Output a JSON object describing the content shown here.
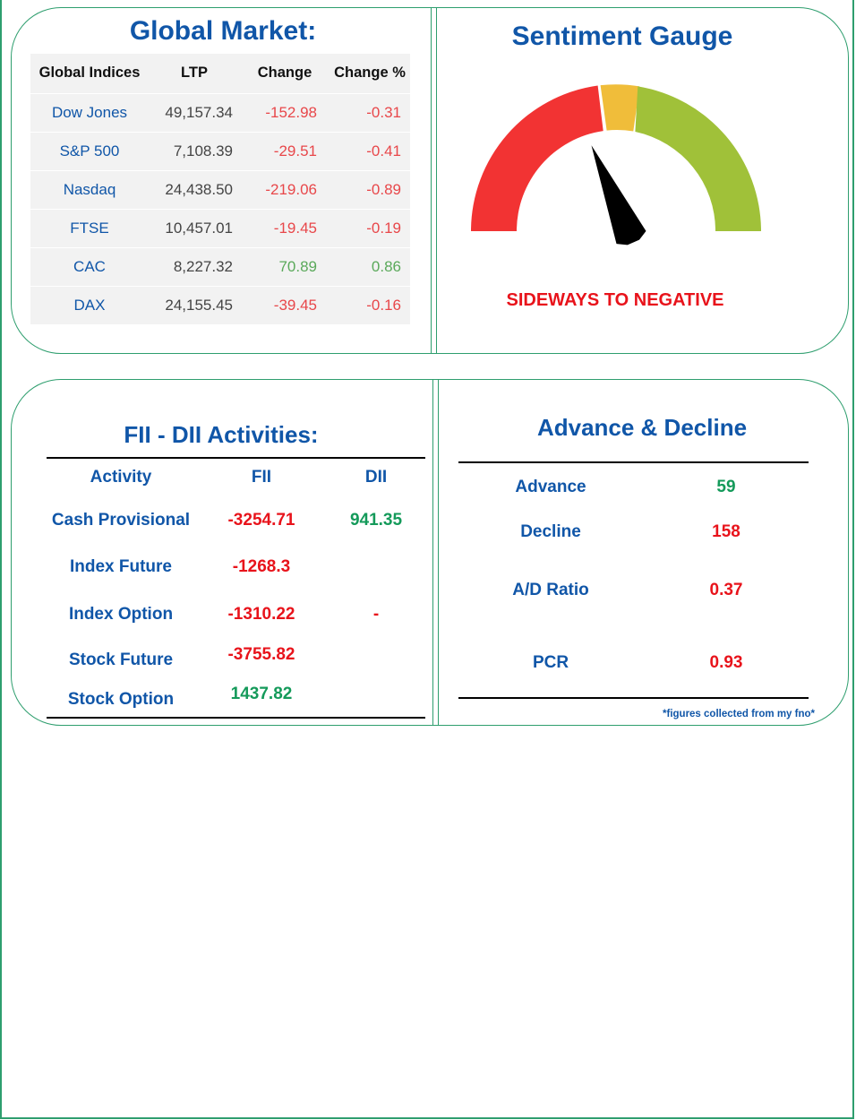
{
  "colors": {
    "accent_blue": "#1056a8",
    "border_green": "#2e9e6e",
    "negative_red": "#e8131b",
    "table_red": "#e8474a",
    "positive_green": "#149a5a",
    "table_green": "#5aa95a",
    "gauge_red": "#f23333",
    "gauge_yellow": "#f0bd3a",
    "gauge_green": "#a0c139"
  },
  "global_market": {
    "title": "Global Market:",
    "headers": [
      "Global Indices",
      "LTP",
      "Change",
      "Change %"
    ],
    "rows": [
      {
        "name": "Dow Jones",
        "ltp": "49,157.34",
        "change": "-152.98",
        "change_pct": "-0.31",
        "trend": "down"
      },
      {
        "name": "S&P 500",
        "ltp": "7,108.39",
        "change": "-29.51",
        "change_pct": "-0.41",
        "trend": "down"
      },
      {
        "name": "Nasdaq",
        "ltp": "24,438.50",
        "change": "-219.06",
        "change_pct": "-0.89",
        "trend": "down"
      },
      {
        "name": "FTSE",
        "ltp": "10,457.01",
        "change": "-19.45",
        "change_pct": "-0.19",
        "trend": "down"
      },
      {
        "name": "CAC",
        "ltp": "8,227.32",
        "change": "70.89",
        "change_pct": "0.86",
        "trend": "up"
      },
      {
        "name": "DAX",
        "ltp": "24,155.45",
        "change": "-39.45",
        "change_pct": "-0.16",
        "trend": "down"
      }
    ]
  },
  "sentiment_gauge": {
    "title": "Sentiment Gauge",
    "label": "SIDEWAYS TO NEGATIVE",
    "segments": [
      "negative",
      "neutral",
      "positive"
    ],
    "needle_position": 0.37
  },
  "fii_dii": {
    "title": "FII - DII Activities:",
    "headers": {
      "activity": "Activity",
      "fii": "FII",
      "dii": "DII"
    },
    "rows": [
      {
        "activity": "Cash Provisional",
        "fii": "-3254.71",
        "fii_trend": "down",
        "dii": "941.35",
        "dii_trend": "up"
      },
      {
        "activity": "Index Future",
        "fii": "-1268.3",
        "fii_trend": "down",
        "dii": "",
        "dii_trend": ""
      },
      {
        "activity": "Index Option",
        "fii": "-1310.22",
        "fii_trend": "down",
        "dii": "-",
        "dii_trend": "down"
      },
      {
        "activity": "Stock Future",
        "fii": "-3755.82",
        "fii_trend": "down",
        "dii": "",
        "dii_trend": ""
      },
      {
        "activity": "Stock Option",
        "fii": "1437.82",
        "fii_trend": "up",
        "dii": "",
        "dii_trend": ""
      }
    ]
  },
  "advance_decline": {
    "title": "Advance & Decline",
    "rows": [
      {
        "label": "Advance",
        "value": "59",
        "trend": "up"
      },
      {
        "label": "Decline",
        "value": "158",
        "trend": "down"
      },
      {
        "label": "A/D Ratio",
        "value": "0.37",
        "trend": "down"
      },
      {
        "label": "PCR",
        "value": "0.93",
        "trend": "down"
      }
    ],
    "footnote": "*figures collected from my fno*"
  }
}
